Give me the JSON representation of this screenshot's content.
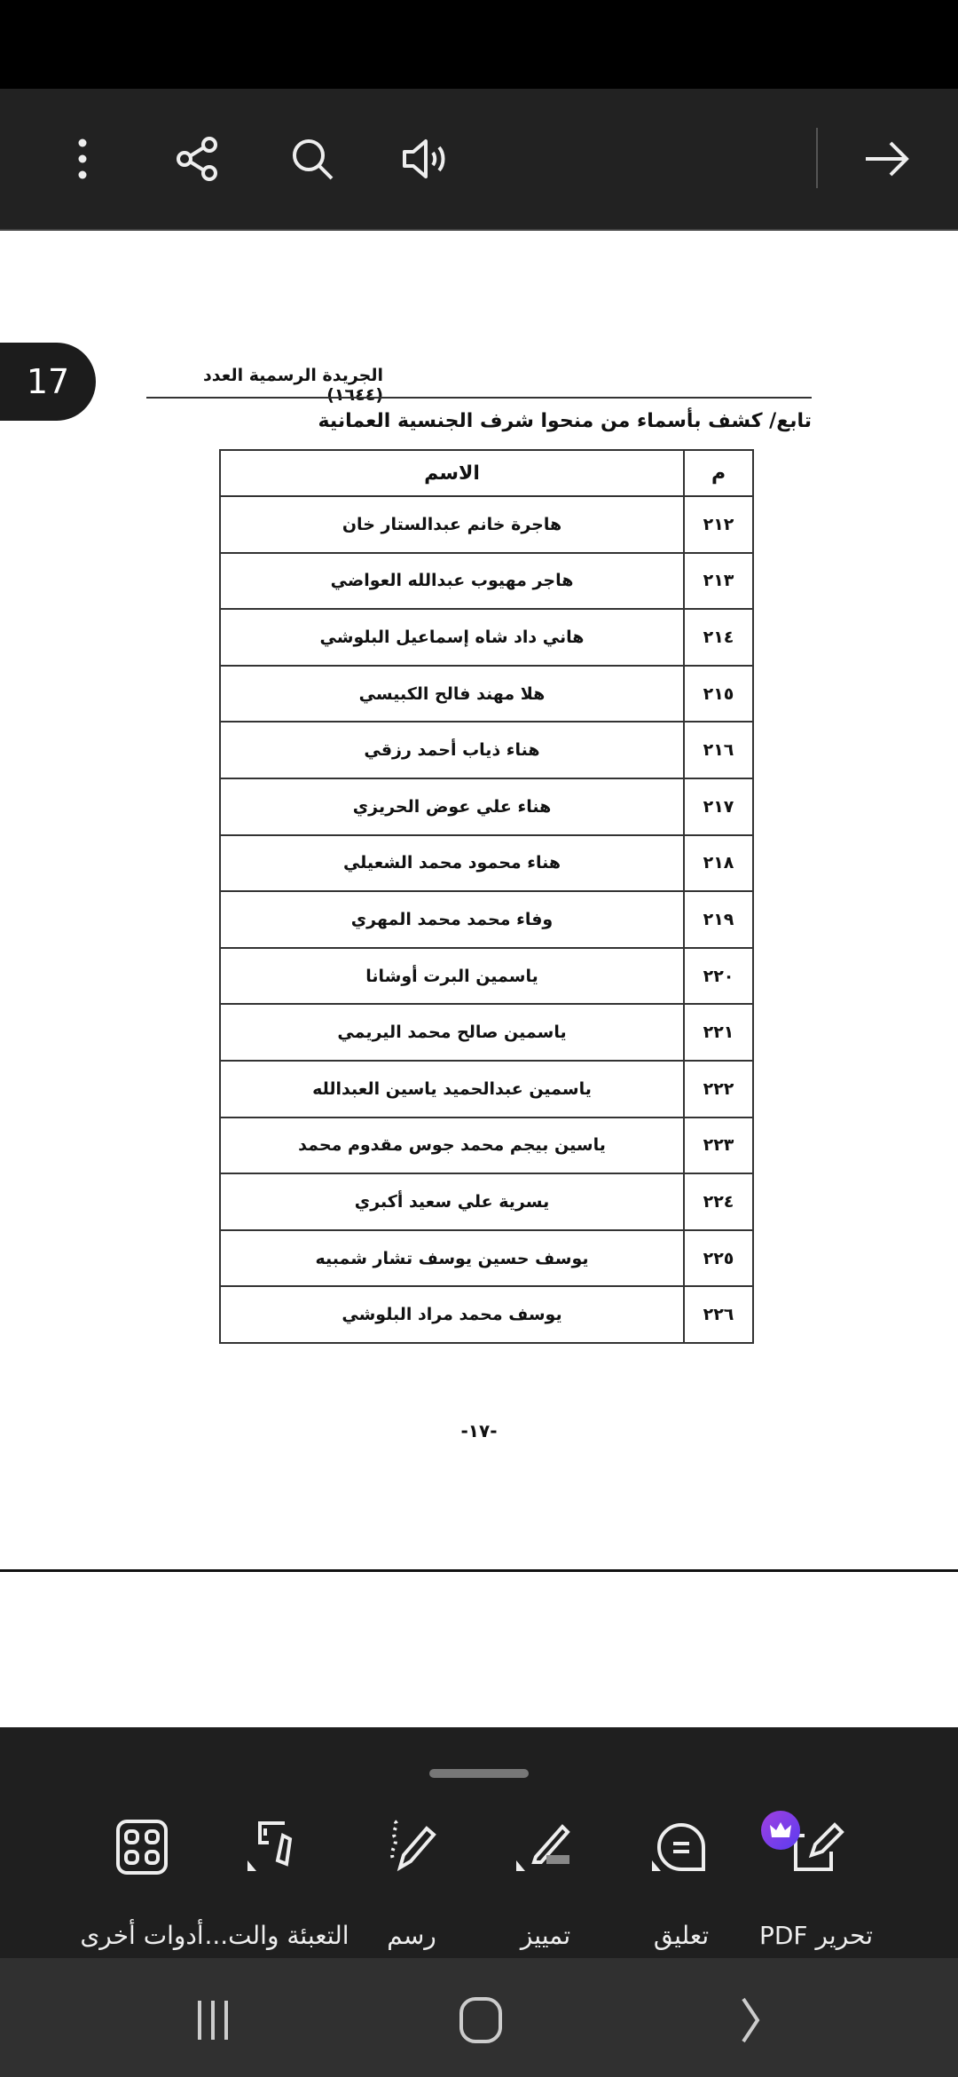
{
  "toolbar": {
    "icons": [
      "more-vertical-icon",
      "share-icon",
      "search-icon",
      "read-aloud-icon",
      "arrow-right-icon"
    ]
  },
  "page_badge": "17",
  "document": {
    "header": "الجريدة الرسمية العدد (١٦٤٤)",
    "title": "تابع/ كشف بأسماء من منحوا شرف الجنسية العمانية",
    "table": {
      "columns": [
        "م",
        "الاسم"
      ],
      "rows": [
        {
          "num": "٢١٢",
          "name": "هاجرة خانم عبدالستار خان"
        },
        {
          "num": "٢١٣",
          "name": "هاجر مهيوب عبدالله العواضي"
        },
        {
          "num": "٢١٤",
          "name": "هاني داد شاه إسماعيل البلوشي"
        },
        {
          "num": "٢١٥",
          "name": "هلا مهند فالح الكبيسي"
        },
        {
          "num": "٢١٦",
          "name": "هناء ذياب أحمد رزقي"
        },
        {
          "num": "٢١٧",
          "name": "هناء علي عوض الحريزي"
        },
        {
          "num": "٢١٨",
          "name": "هناء محمود محمد الشعيلي"
        },
        {
          "num": "٢١٩",
          "name": "وفاء محمد محمد المهري"
        },
        {
          "num": "٢٢٠",
          "name": "ياسمين البرت أوشانا"
        },
        {
          "num": "٢٢١",
          "name": "ياسمين صالح محمد اليريمي"
        },
        {
          "num": "٢٢٢",
          "name": "ياسمين عبدالحميد ياسين العبدالله"
        },
        {
          "num": "٢٢٣",
          "name": "ياسين بيجم محمد جوس مقدوم محمد"
        },
        {
          "num": "٢٢٤",
          "name": "يسرية علي سعيد أكبري"
        },
        {
          "num": "٢٢٥",
          "name": "يوسف حسين يوسف تشار شمبيه"
        },
        {
          "num": "٢٢٦",
          "name": "يوسف محمد مراد البلوشي"
        }
      ]
    },
    "page_footer": "-١٧-"
  },
  "bottom_tools": [
    {
      "label": "تحرير PDF",
      "icon": "edit-pdf-icon"
    },
    {
      "label": "تعليق",
      "icon": "comment-icon"
    },
    {
      "label": "تمييز",
      "icon": "highlight-icon"
    },
    {
      "label": "رسم",
      "icon": "draw-icon"
    },
    {
      "label": "التعبئة والت...",
      "icon": "fill-sign-icon"
    },
    {
      "label": "أدوات أخرى",
      "icon": "more-tools-icon"
    }
  ],
  "colors": {
    "premium_badge": "#7b3fe8",
    "toolbar_bg": "#222222"
  }
}
